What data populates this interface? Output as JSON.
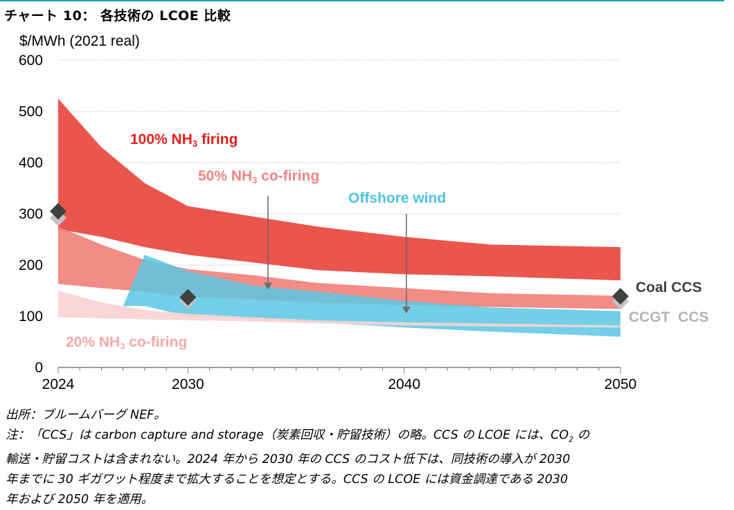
{
  "chart_title": "チャート 10： 各技術の LCOE 比較",
  "chart_data": {
    "type": "area",
    "ylabel": "$/MWh (2021 real)",
    "ylim": [
      0,
      600
    ],
    "yticks": [
      "0",
      "100",
      "200",
      "300",
      "400",
      "500",
      "600"
    ],
    "xlim": [
      2024,
      2050
    ],
    "xticks": [
      "2024",
      "2030",
      "2040",
      "2050"
    ],
    "grid": true,
    "series": [
      {
        "name": "100% NH₃ firing",
        "label": [
          "100% NH",
          "3",
          " firing"
        ],
        "color": "#e8423a",
        "x": [
          2024,
          2026,
          2028,
          2030,
          2033,
          2036,
          2040,
          2044,
          2050
        ],
        "upper": [
          525,
          430,
          360,
          315,
          295,
          275,
          255,
          240,
          235
        ],
        "lower": [
          270,
          255,
          235,
          220,
          205,
          190,
          182,
          178,
          170
        ]
      },
      {
        "name": "50% NH₃ co-firing",
        "label": [
          "50% NH",
          "3",
          " co-firing"
        ],
        "color": "#f07f7a",
        "x": [
          2024,
          2026,
          2028,
          2030,
          2033,
          2036,
          2040,
          2044,
          2050
        ],
        "upper": [
          275,
          240,
          210,
          192,
          180,
          165,
          155,
          145,
          140
        ],
        "lower": [
          163,
          155,
          148,
          138,
          133,
          127,
          122,
          118,
          114
        ]
      },
      {
        "name": "Offshore wind",
        "label": [
          "Offshore wind"
        ],
        "color": "#5bc7e3",
        "x": [
          2027,
          2028,
          2030,
          2033,
          2036,
          2040,
          2044,
          2050
        ],
        "upper": [
          120,
          220,
          188,
          160,
          148,
          130,
          117,
          110
        ],
        "lower": [
          120,
          120,
          100,
          95,
          88,
          78,
          70,
          60
        ]
      },
      {
        "name": "20% NH₃ co-firing",
        "label": [
          "20% NH",
          "3",
          " co-firing"
        ],
        "color": "#f8d3d1",
        "x": [
          2024,
          2026,
          2028,
          2030,
          2033,
          2036,
          2040,
          2044,
          2050
        ],
        "upper": [
          150,
          127,
          112,
          105,
          98,
          92,
          88,
          86,
          82
        ],
        "lower": [
          98,
          96,
          94,
          92,
          90,
          86,
          82,
          80,
          78
        ]
      }
    ],
    "markers": [
      {
        "name": "Coal CCS",
        "color": "#404040",
        "points": [
          [
            2024,
            305
          ],
          [
            2030,
            137
          ],
          [
            2050,
            139
          ]
        ]
      },
      {
        "name": "CCGT CCS",
        "color": "#c2c2c2",
        "points": [
          [
            2024,
            292
          ],
          [
            2030,
            130
          ],
          [
            2050,
            129
          ]
        ]
      }
    ],
    "arrows": [
      {
        "x": 2033.7,
        "from": 335,
        "to": 152
      },
      {
        "x": 2040.1,
        "from": 300,
        "to": 105
      }
    ]
  },
  "footer": {
    "source": "出所：ブルームバーグ NEF。",
    "note_line1_pre": "注：「CCS」は carbon capture and storage（炭素回収・貯留技術）の略。CCS の LCOE には、CO",
    "note_line1_sub": "2",
    "note_line1_post": " の",
    "note_line2": "輸送・貯留コストは含まれない。2024 年から 2030 年の CCS のコスト低下は、同技術の導入が 2030",
    "note_line3": "年までに 30 ギガワット程度まで拡大することを想定とする。CCS の LCOE には資金調達である 2030",
    "note_line4": "年および 2050 年を適用。"
  }
}
